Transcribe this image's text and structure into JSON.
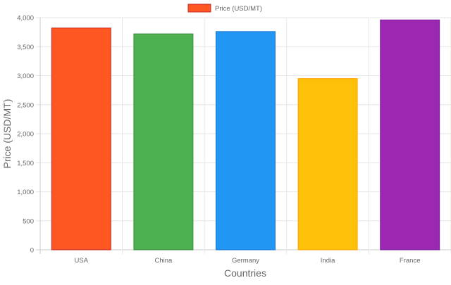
{
  "chart_data": {
    "type": "bar",
    "legend": {
      "label": "Price (USD/MT)",
      "placement": "top-center",
      "color": "#FF5722"
    },
    "xlabel": "Countries",
    "ylabel": "Price (USD/MT)",
    "ylim": [
      0,
      4000
    ],
    "yticks": [
      "0",
      "500",
      "1,000",
      "1,500",
      "2,000",
      "2,500",
      "3,000",
      "3,500",
      "4,000"
    ],
    "ytick_values": [
      0,
      500,
      1000,
      1500,
      2000,
      2500,
      3000,
      3500,
      4000
    ],
    "grid": true,
    "categories": [
      "USA",
      "China",
      "Germany",
      "India",
      "France"
    ],
    "series": [
      {
        "name": "Price (USD/MT)",
        "values": [
          3820,
          3720,
          3760,
          2950,
          3960
        ],
        "colors": [
          "#FF5722",
          "#4CAF50",
          "#2196F3",
          "#FFC107",
          "#9C27B0"
        ],
        "border_colors": [
          "#C62828",
          "#388E3C",
          "#1976D2",
          "#FFA000",
          "#7B1FA2"
        ]
      }
    ]
  }
}
